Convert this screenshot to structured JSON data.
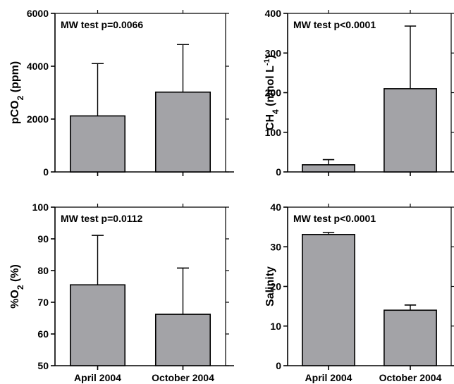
{
  "chart_data": [
    {
      "type": "bar",
      "categories": [
        "April 2004",
        "October 2004"
      ],
      "values": [
        2120,
        3020
      ],
      "error_upper": [
        4100,
        4820
      ],
      "ylim": [
        0,
        6000
      ],
      "yticks": [
        "0",
        "2000",
        "4000",
        "6000"
      ],
      "ylabel_parts": [
        {
          "t": "pCO"
        },
        {
          "t": "2",
          "sub": true
        },
        {
          "t": " (ppm)"
        }
      ],
      "annotation": "MW test p=0.0066",
      "show_category_labels": false
    },
    {
      "type": "bar",
      "categories": [
        "April 2004",
        "October 2004"
      ],
      "values": [
        18,
        210
      ],
      "error_upper": [
        31,
        368
      ],
      "ylim": [
        0,
        400
      ],
      "yticks": [
        "0",
        "100",
        "200",
        "300",
        "400"
      ],
      "ylabel_parts": [
        {
          "t": "CH"
        },
        {
          "t": "4",
          "sub": true
        },
        {
          "t": " (nmol L"
        },
        {
          "t": "-1",
          "sup": true
        },
        {
          "t": ")"
        }
      ],
      "annotation": "MW test p<0.0001",
      "show_category_labels": false
    },
    {
      "type": "bar",
      "categories": [
        "April 2004",
        "October 2004"
      ],
      "values": [
        75.5,
        66.2
      ],
      "error_upper": [
        91.1,
        80.8
      ],
      "ylim": [
        50,
        100
      ],
      "yticks": [
        "50",
        "60",
        "70",
        "80",
        "90",
        "100"
      ],
      "ylabel_parts": [
        {
          "t": "%O"
        },
        {
          "t": "2",
          "sub": true
        },
        {
          "t": " (%)"
        }
      ],
      "annotation": "MW test p=0.0112",
      "show_category_labels": true
    },
    {
      "type": "bar",
      "categories": [
        "April  2004",
        "October 2004"
      ],
      "values": [
        33.1,
        14.0
      ],
      "error_upper": [
        33.6,
        15.3
      ],
      "ylim": [
        0,
        40
      ],
      "yticks": [
        "0",
        "10",
        "20",
        "30",
        "40"
      ],
      "ylabel_parts": [
        {
          "t": "Salinity"
        }
      ],
      "annotation": "MW test p<0.0001",
      "show_category_labels": true
    }
  ],
  "colors": {
    "bar_fill": "#a3a3a7",
    "stroke": "#000000"
  }
}
